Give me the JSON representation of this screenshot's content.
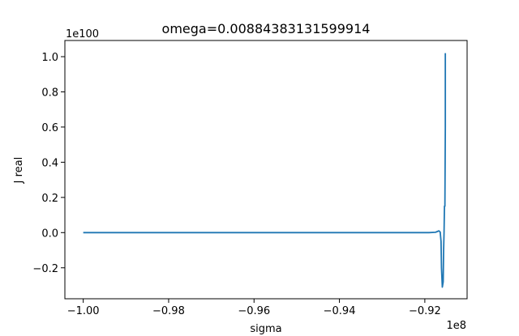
{
  "chart_data": {
    "type": "line",
    "title": "omega=0.00884383131599914",
    "xlabel": "sigma",
    "ylabel": "J real",
    "x_offset_label": "1e8",
    "y_offset_label": "1e100",
    "xlim": [
      -1.0043,
      -0.9101
    ],
    "ylim": [
      -0.376,
      1.092
    ],
    "x_ticks": [
      -1.0,
      -0.98,
      -0.96,
      -0.94,
      -0.92
    ],
    "x_tick_labels": [
      "−1.00",
      "−0.98",
      "−0.96",
      "−0.94",
      "−0.92"
    ],
    "y_ticks": [
      -0.2,
      0.0,
      0.2,
      0.4,
      0.6,
      0.8,
      1.0
    ],
    "y_tick_labels": [
      "−0.2",
      "0.0",
      "0.2",
      "0.4",
      "0.6",
      "0.8",
      "1.0"
    ],
    "grid": false,
    "series": [
      {
        "color": "#1f77b4",
        "x": [
          -1.0,
          -0.96,
          -0.93,
          -0.919,
          -0.9175,
          -0.9167,
          -0.9164,
          -0.9162,
          -0.9161,
          -0.9159,
          -0.9157,
          -0.9156,
          -0.9155,
          -0.9154,
          -0.9153,
          -0.9152,
          -0.9152
        ],
        "y": [
          0.0,
          0.0,
          0.0,
          0.0,
          0.002,
          0.01,
          0.003,
          -0.05,
          -0.2,
          -0.31,
          -0.28,
          -0.1,
          0.0,
          0.15,
          0.15,
          0.6,
          1.02
        ]
      }
    ]
  }
}
